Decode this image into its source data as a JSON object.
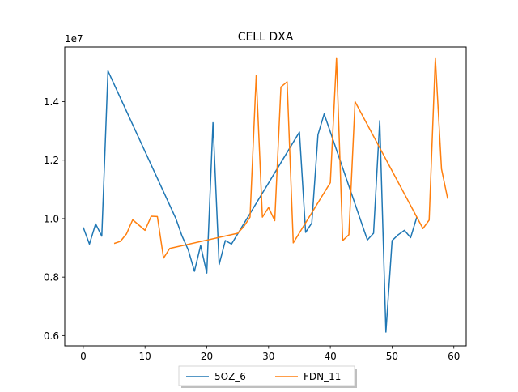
{
  "chart_data": {
    "type": "line",
    "title": "CELL DXA",
    "xlabel": "",
    "ylabel": "",
    "y_offset_label": "1e7",
    "xlim": [
      -3,
      62
    ],
    "ylim": [
      5650000,
      15870000
    ],
    "x_ticks": [
      0,
      10,
      20,
      30,
      40,
      50,
      60
    ],
    "x_tick_labels": [
      "0",
      "10",
      "20",
      "30",
      "40",
      "50",
      "60"
    ],
    "y_ticks": [
      6000000,
      8000000,
      10000000,
      12000000,
      14000000
    ],
    "y_tick_labels": [
      "0.6",
      "0.8",
      "1.0",
      "1.2",
      "1.4"
    ],
    "grid": false,
    "legend_position": "bottom-center",
    "series": [
      {
        "name": "5OZ_6",
        "color": "#1f77b4",
        "x": [
          0,
          1,
          2,
          3,
          4,
          15,
          16,
          17,
          18,
          19,
          20,
          21,
          22,
          23,
          24,
          35,
          36,
          37,
          38,
          39,
          46,
          47,
          48,
          49,
          50,
          51,
          52,
          53,
          54
        ],
        "y": [
          9700000,
          9130000,
          9820000,
          9400000,
          15050000,
          10000000,
          9400000,
          8930000,
          8200000,
          9080000,
          8140000,
          13280000,
          8430000,
          9250000,
          9130000,
          12960000,
          9530000,
          9850000,
          12870000,
          13580000,
          9270000,
          9500000,
          13350000,
          6120000,
          9250000,
          9450000,
          9600000,
          9350000,
          10050000
        ]
      },
      {
        "name": "FDN_11",
        "color": "#ff7f0e",
        "x": [
          5,
          6,
          7,
          8,
          10,
          11,
          12,
          13,
          14,
          25,
          26,
          27,
          28,
          29,
          30,
          31,
          32,
          33,
          34,
          40,
          41,
          42,
          43,
          44,
          55,
          56,
          57,
          58,
          59
        ],
        "y": [
          9150000,
          9220000,
          9480000,
          9960000,
          9600000,
          10080000,
          10070000,
          8650000,
          8980000,
          9500000,
          9730000,
          10050000,
          14900000,
          10050000,
          10380000,
          9930000,
          14500000,
          14680000,
          9170000,
          11230000,
          15500000,
          9250000,
          9450000,
          14000000,
          9660000,
          9950000,
          15500000,
          11700000,
          10680000
        ]
      }
    ]
  }
}
